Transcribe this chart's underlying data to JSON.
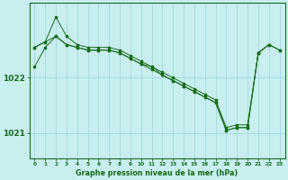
{
  "title": "Graphe pression niveau de la mer (hPa)",
  "bg_color": "#c8eef0",
  "grid_color": "#aadddd",
  "line_color": "#1a6b1a",
  "hours": [
    0,
    1,
    2,
    3,
    4,
    5,
    6,
    7,
    8,
    9,
    10,
    11,
    12,
    13,
    14,
    15,
    16,
    17,
    18,
    19,
    20,
    21,
    22,
    23
  ],
  "series1": [
    1022.55,
    1022.65,
    1022.75,
    1022.6,
    1022.55,
    1022.5,
    1022.5,
    1022.5,
    1022.45,
    1022.35,
    1022.25,
    1022.2,
    1022.05,
    1021.95,
    1021.85,
    1021.75,
    1021.65,
    1021.55,
    1021.05,
    1021.1,
    1021.1,
    1022.45,
    1022.6,
    1022.5
  ],
  "series2": [
    1022.55,
    1022.65,
    1023.1,
    1022.75,
    1022.6,
    1022.55,
    1022.55,
    1022.55,
    1022.5,
    1022.4,
    1022.3,
    1022.2,
    1022.1,
    1022.0,
    1021.9,
    1021.8,
    1021.7,
    1021.6,
    1021.1,
    1021.15,
    1021.15,
    1022.45,
    1022.6,
    null
  ],
  "series3": [
    1022.2,
    1022.55,
    1022.75,
    1022.6,
    1022.55,
    1022.5,
    1022.5,
    1022.5,
    1022.45,
    1022.35,
    1022.25,
    1022.15,
    1022.05,
    1021.95,
    1021.85,
    1021.75,
    1021.65,
    1021.55,
    1021.05,
    1021.1,
    1021.1,
    1022.45,
    1022.6,
    1022.5
  ],
  "ylim": [
    1020.55,
    1023.35
  ],
  "yticks": [
    1021.0,
    1022.0
  ],
  "figsize": [
    3.2,
    2.0
  ],
  "dpi": 100,
  "xtick_labels": [
    "0",
    "1",
    "2",
    "3",
    "4",
    "5",
    "6",
    "7",
    "8",
    "9",
    "10",
    "11",
    "12",
    "13",
    "14",
    "15",
    "16",
    "17",
    "18",
    "19",
    "20",
    "21",
    "22",
    "23"
  ]
}
